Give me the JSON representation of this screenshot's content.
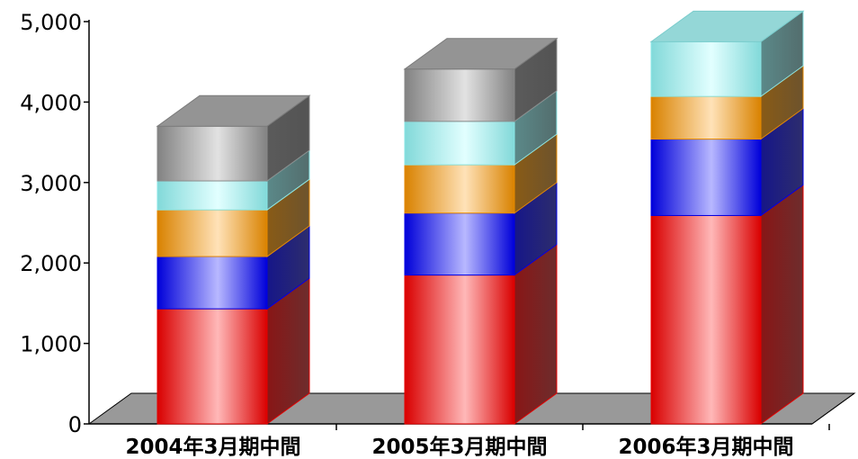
{
  "chart_data": {
    "type": "bar",
    "stacked": true,
    "three_d": true,
    "categories": [
      "2004年3月期中間",
      "2005年3月期中間",
      "2006年3月期中間"
    ],
    "series": [
      {
        "values": [
          1430,
          1850,
          2590
        ],
        "color": "#ff0000"
      },
      {
        "values": [
          650,
          770,
          950
        ],
        "color": "#0000ff"
      },
      {
        "values": [
          580,
          600,
          530
        ],
        "color": "#ff9900"
      },
      {
        "values": [
          360,
          540,
          680
        ],
        "color": "#99ffff"
      },
      {
        "values": [
          680,
          650,
          0
        ],
        "color": "#999999"
      }
    ],
    "ylim": [
      0,
      5000
    ],
    "y_ticks": [
      "0",
      "1,000",
      "2,000",
      "3,000",
      "4,000",
      "5,000"
    ],
    "grid": false,
    "legend": "none",
    "floor_color": "#999999"
  }
}
